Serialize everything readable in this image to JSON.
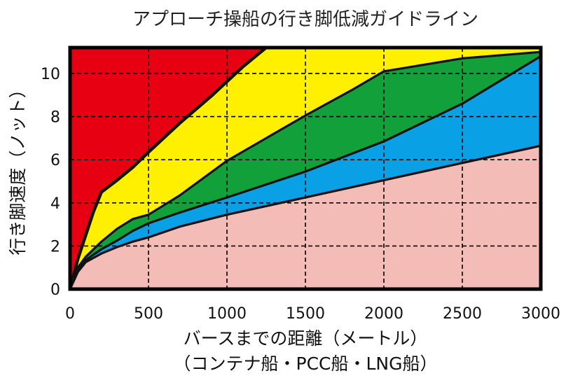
{
  "chart_data": {
    "type": "area",
    "title": "アプローチ操船の行き脚低減ガイドライン",
    "xlabel": "バースまでの距離（メートル）",
    "xlabel_sub": "（コンテナ船・PCC船・LNG船）",
    "ylabel": "行き脚速度（ノット）",
    "xlim": [
      0,
      3000
    ],
    "ylim": [
      0,
      11.2
    ],
    "x_ticks": [
      "0",
      "500",
      "1000",
      "1500",
      "2000",
      "2500",
      "3000"
    ],
    "y_ticks": [
      "0",
      "2",
      "4",
      "6",
      "8",
      "10"
    ],
    "grid": true,
    "bands": [
      {
        "zone": "pink",
        "color": "#f4bcb6"
      },
      {
        "zone": "blue",
        "color": "#0aa0e6"
      },
      {
        "zone": "green",
        "color": "#11a03a"
      },
      {
        "zone": "yellow",
        "color": "#fff000"
      },
      {
        "zone": "red",
        "color": "#e60012"
      }
    ],
    "boundaries": [
      {
        "id": "pink-blue",
        "x": [
          0,
          50,
          100,
          200,
          300,
          400,
          500,
          700,
          1000,
          1500,
          2000,
          2500,
          3000
        ],
        "y": [
          0,
          0.8,
          1.25,
          1.65,
          1.95,
          2.2,
          2.4,
          2.9,
          3.45,
          4.25,
          5.05,
          5.85,
          6.65
        ]
      },
      {
        "id": "blue-green",
        "x": [
          0,
          50,
          100,
          200,
          300,
          400,
          500,
          700,
          1000,
          1500,
          2000,
          2500,
          3000
        ],
        "y": [
          0,
          0.9,
          1.35,
          1.85,
          2.25,
          2.7,
          3.05,
          3.55,
          4.25,
          5.45,
          6.85,
          8.6,
          10.8
        ]
      },
      {
        "id": "green-yellow",
        "x": [
          0,
          50,
          100,
          200,
          300,
          400,
          500,
          700,
          1000,
          1500,
          1800,
          2000,
          2500,
          3000
        ],
        "y": [
          0,
          1.0,
          1.5,
          2.2,
          2.8,
          3.25,
          3.45,
          4.35,
          5.95,
          8.05,
          9.25,
          10.1,
          10.7,
          11.0
        ]
      },
      {
        "id": "yellow-red",
        "x": [
          0,
          50,
          100,
          150,
          200,
          300,
          400,
          500,
          700,
          900,
          1100,
          1200,
          1250
        ],
        "y": [
          0,
          1.4,
          2.5,
          3.6,
          4.5,
          5.05,
          5.65,
          6.35,
          7.7,
          8.95,
          10.3,
          10.9,
          11.2
        ]
      }
    ]
  }
}
